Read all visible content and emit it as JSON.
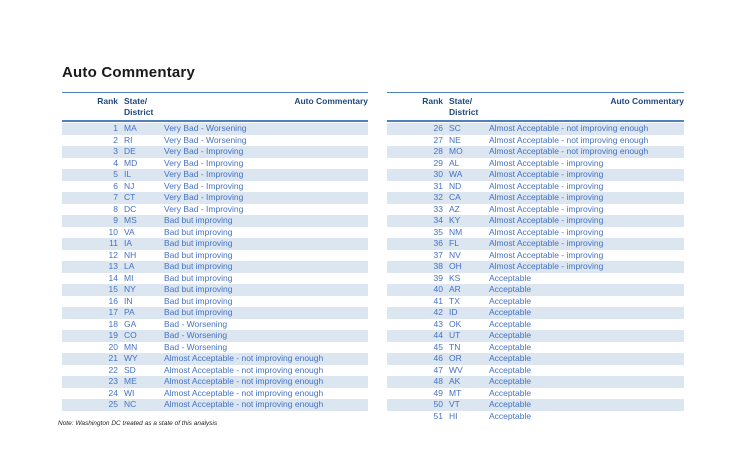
{
  "page": {
    "title": "Auto Commentary",
    "note": "Note: Washington DC treated as a state of this analysis"
  },
  "colors": {
    "title_text": "#1a1a1a",
    "header_text": "#1f497d",
    "row_text": "#4472c4",
    "row_shade": "#dce6f1",
    "rule": "#4f81bd"
  },
  "tables": [
    {
      "headers": {
        "rank": "Rank",
        "state_line1": "State/",
        "state_line2": "District",
        "commentary": "Auto Commentary"
      },
      "rows": [
        {
          "rank": "1",
          "state": "MA",
          "commentary": "Very Bad - Worsening"
        },
        {
          "rank": "2",
          "state": "RI",
          "commentary": "Very Bad - Worsening"
        },
        {
          "rank": "3",
          "state": "DE",
          "commentary": "Very Bad - Improving"
        },
        {
          "rank": "4",
          "state": "MD",
          "commentary": "Very Bad - Improving"
        },
        {
          "rank": "5",
          "state": "IL",
          "commentary": "Very Bad - Improving"
        },
        {
          "rank": "6",
          "state": "NJ",
          "commentary": "Very Bad - Improving"
        },
        {
          "rank": "7",
          "state": "CT",
          "commentary": "Very Bad - Improving"
        },
        {
          "rank": "8",
          "state": "DC",
          "commentary": "Very Bad - Improving"
        },
        {
          "rank": "9",
          "state": "MS",
          "commentary": "Bad but improving"
        },
        {
          "rank": "10",
          "state": "VA",
          "commentary": "Bad but improving"
        },
        {
          "rank": "11",
          "state": "IA",
          "commentary": "Bad but improving"
        },
        {
          "rank": "12",
          "state": "NH",
          "commentary": "Bad but improving"
        },
        {
          "rank": "13",
          "state": "LA",
          "commentary": "Bad but improving"
        },
        {
          "rank": "14",
          "state": "MI",
          "commentary": "Bad but improving"
        },
        {
          "rank": "15",
          "state": "NY",
          "commentary": "Bad but improving"
        },
        {
          "rank": "16",
          "state": "IN",
          "commentary": "Bad but improving"
        },
        {
          "rank": "17",
          "state": "PA",
          "commentary": "Bad but improving"
        },
        {
          "rank": "18",
          "state": "GA",
          "commentary": "Bad - Worsening"
        },
        {
          "rank": "19",
          "state": "CO",
          "commentary": "Bad - Worsening"
        },
        {
          "rank": "20",
          "state": "MN",
          "commentary": "Bad - Worsening"
        },
        {
          "rank": "21",
          "state": "WY",
          "commentary": "Almost Acceptable - not improving enough"
        },
        {
          "rank": "22",
          "state": "SD",
          "commentary": "Almost Acceptable - not improving enough"
        },
        {
          "rank": "23",
          "state": "ME",
          "commentary": "Almost Acceptable - not improving enough"
        },
        {
          "rank": "24",
          "state": "WI",
          "commentary": "Almost Acceptable - not improving enough"
        },
        {
          "rank": "25",
          "state": "NC",
          "commentary": "Almost Acceptable - not improving enough"
        }
      ]
    },
    {
      "headers": {
        "rank": "Rank",
        "state_line1": "State/",
        "state_line2": "District",
        "commentary": "Auto Commentary"
      },
      "rows": [
        {
          "rank": "26",
          "state": "SC",
          "commentary": "Almost Acceptable - not improving enough"
        },
        {
          "rank": "27",
          "state": "NE",
          "commentary": "Almost Acceptable - not improving enough"
        },
        {
          "rank": "28",
          "state": "MO",
          "commentary": "Almost Acceptable - not improving enough"
        },
        {
          "rank": "29",
          "state": "AL",
          "commentary": "Almost Acceptable - improving"
        },
        {
          "rank": "30",
          "state": "WA",
          "commentary": "Almost Acceptable - improving"
        },
        {
          "rank": "31",
          "state": "ND",
          "commentary": "Almost Acceptable - improving"
        },
        {
          "rank": "32",
          "state": "CA",
          "commentary": "Almost Acceptable - improving"
        },
        {
          "rank": "33",
          "state": "AZ",
          "commentary": "Almost Acceptable - improving"
        },
        {
          "rank": "34",
          "state": "KY",
          "commentary": "Almost Acceptable - improving"
        },
        {
          "rank": "35",
          "state": "NM",
          "commentary": "Almost Acceptable - improving"
        },
        {
          "rank": "36",
          "state": "FL",
          "commentary": "Almost Acceptable - improving"
        },
        {
          "rank": "37",
          "state": "NV",
          "commentary": "Almost Acceptable - improving"
        },
        {
          "rank": "38",
          "state": "OH",
          "commentary": "Almost Acceptable - improving"
        },
        {
          "rank": "39",
          "state": "KS",
          "commentary": "Acceptable"
        },
        {
          "rank": "40",
          "state": "AR",
          "commentary": "Acceptable"
        },
        {
          "rank": "41",
          "state": "TX",
          "commentary": "Acceptable"
        },
        {
          "rank": "42",
          "state": "ID",
          "commentary": "Acceptable"
        },
        {
          "rank": "43",
          "state": "OK",
          "commentary": "Acceptable"
        },
        {
          "rank": "44",
          "state": "UT",
          "commentary": "Acceptable"
        },
        {
          "rank": "45",
          "state": "TN",
          "commentary": "Acceptable"
        },
        {
          "rank": "46",
          "state": "OR",
          "commentary": "Acceptable"
        },
        {
          "rank": "47",
          "state": "WV",
          "commentary": "Acceptable"
        },
        {
          "rank": "48",
          "state": "AK",
          "commentary": "Acceptable"
        },
        {
          "rank": "49",
          "state": "MT",
          "commentary": "Acceptable"
        },
        {
          "rank": "50",
          "state": "VT",
          "commentary": "Acceptable"
        },
        {
          "rank": "51",
          "state": "HI",
          "commentary": "Acceptable"
        }
      ]
    }
  ]
}
